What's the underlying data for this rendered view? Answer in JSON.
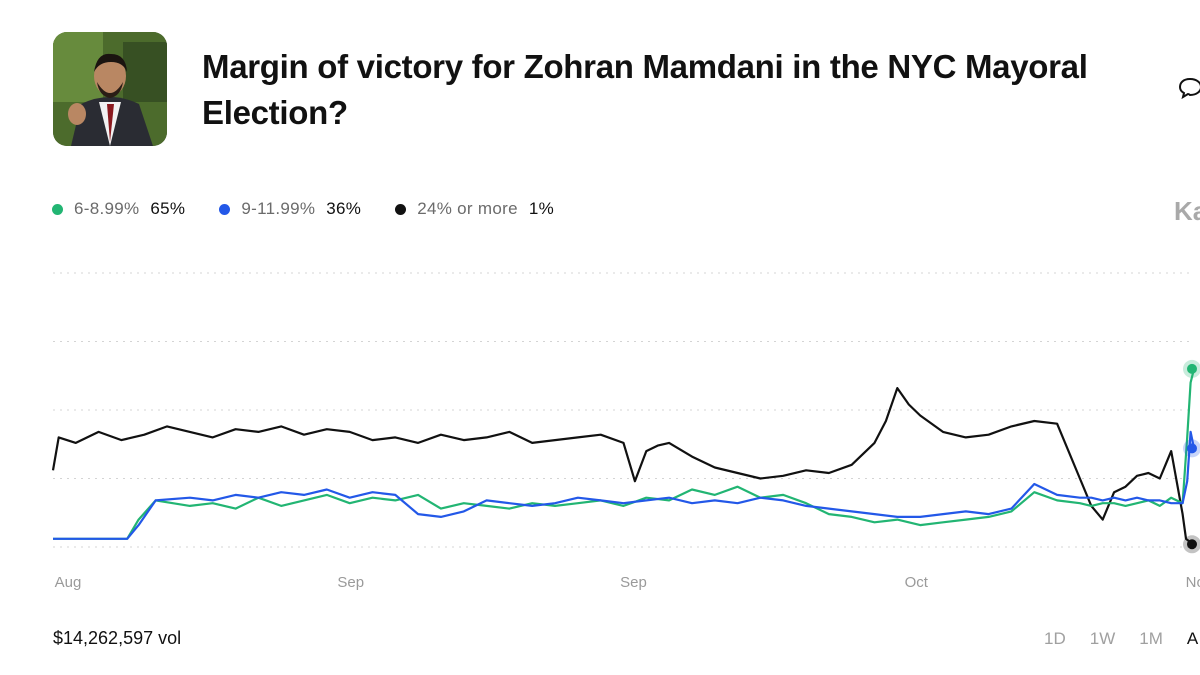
{
  "market": {
    "title": "Margin of victory for Zohran Mamdani in the NYC Mayoral Election?",
    "volume": "$14,262,597 vol",
    "brand_partial": "Ka"
  },
  "legend": [
    {
      "name": "6-8.99%",
      "value": "65%",
      "color": "#22b573"
    },
    {
      "name": "9-11.99%",
      "value": "36%",
      "color": "#2358e8"
    },
    {
      "name": "24% or more",
      "value": "1%",
      "color": "#111111"
    }
  ],
  "time_ranges": {
    "d1": "1D",
    "w1": "1W",
    "m1": "1M",
    "all": "A"
  },
  "chart_data": {
    "type": "line",
    "title": "",
    "xlabel": "",
    "ylabel": "",
    "x_ticks": [
      "Aug",
      "Sep",
      "Sep",
      "Oct",
      "Nov"
    ],
    "x_range": [
      0,
      100
    ],
    "ylim": [
      0,
      100
    ],
    "grid": true,
    "series": [
      {
        "name": "6-8.99%",
        "color": "#22b573",
        "x": [
          0,
          6.5,
          7.5,
          9,
          12,
          14,
          16,
          18,
          20,
          22,
          24,
          26,
          28,
          30,
          32,
          34,
          36,
          38,
          40,
          42,
          44,
          46,
          48,
          50,
          52,
          54,
          56,
          58,
          60,
          62,
          64,
          66,
          68,
          70,
          72,
          74,
          76,
          78,
          80,
          82,
          84,
          86,
          88,
          90,
          91,
          92,
          93,
          94,
          95,
          96,
          97,
          98,
          99,
          99.4,
          99.7,
          100
        ],
        "y": [
          3,
          3,
          10,
          17,
          15,
          16,
          14,
          18,
          15,
          17,
          19,
          16,
          18,
          17,
          19,
          14,
          16,
          15,
          14,
          16,
          15,
          16,
          17,
          15,
          18,
          17,
          21,
          19,
          22,
          18,
          19,
          16,
          12,
          11,
          9,
          10,
          8,
          9,
          10,
          11,
          13,
          20,
          17,
          16,
          15,
          16,
          16,
          15,
          16,
          17,
          15,
          18,
          16,
          40,
          60,
          65
        ]
      },
      {
        "name": "9-11.99%",
        "color": "#2358e8",
        "x": [
          0,
          6.5,
          7.5,
          9,
          12,
          14,
          16,
          18,
          20,
          22,
          24,
          26,
          28,
          30,
          32,
          34,
          36,
          38,
          40,
          42,
          44,
          46,
          48,
          50,
          52,
          54,
          56,
          58,
          60,
          62,
          64,
          66,
          68,
          70,
          72,
          74,
          76,
          78,
          80,
          82,
          84,
          86,
          88,
          90,
          91,
          92,
          93,
          94,
          95,
          96,
          97,
          98,
          99,
          99.4,
          99.7,
          100
        ],
        "y": [
          3,
          3,
          8,
          17,
          18,
          17,
          19,
          18,
          20,
          19,
          21,
          18,
          20,
          19,
          12,
          11,
          13,
          17,
          16,
          15,
          16,
          18,
          17,
          16,
          17,
          18,
          16,
          17,
          16,
          18,
          17,
          15,
          14,
          13,
          12,
          11,
          11,
          12,
          13,
          12,
          14,
          23,
          19,
          18,
          18,
          17,
          18,
          17,
          18,
          17,
          17,
          16,
          16,
          24,
          42,
          36
        ]
      },
      {
        "name": "24% or more",
        "color": "#111111",
        "x": [
          0,
          0.5,
          2,
          4,
          6,
          8,
          10,
          12,
          14,
          16,
          18,
          20,
          22,
          24,
          26,
          28,
          30,
          32,
          34,
          36,
          38,
          40,
          42,
          44,
          46,
          48,
          50,
          51,
          52,
          53,
          54,
          56,
          58,
          60,
          62,
          64,
          66,
          68,
          70,
          72,
          73,
          74,
          75,
          76,
          78,
          80,
          82,
          84,
          86,
          88,
          90,
          91,
          92,
          93,
          94,
          95,
          96,
          97,
          97.5,
          98,
          99,
          99.3,
          99.6,
          100
        ],
        "y": [
          28,
          40,
          38,
          42,
          39,
          41,
          44,
          42,
          40,
          43,
          42,
          44,
          41,
          43,
          42,
          39,
          40,
          38,
          41,
          39,
          40,
          42,
          38,
          39,
          40,
          41,
          38,
          24,
          35,
          37,
          38,
          33,
          29,
          27,
          25,
          26,
          28,
          27,
          30,
          38,
          46,
          58,
          52,
          48,
          42,
          40,
          41,
          44,
          46,
          45,
          25,
          15,
          10,
          20,
          22,
          26,
          27,
          25,
          30,
          35,
          12,
          3,
          2,
          1
        ]
      }
    ]
  }
}
